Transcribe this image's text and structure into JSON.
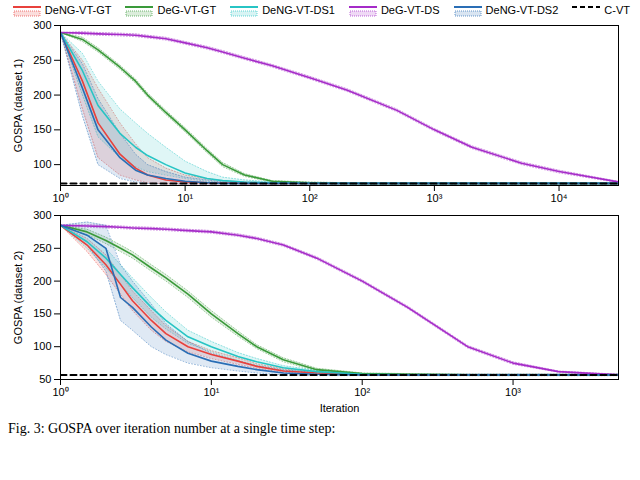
{
  "chart_data": [
    {
      "type": "line",
      "log": "x",
      "legend": "top-right",
      "ylabel": "GOSPA (dataset 1)",
      "xlim": [
        1,
        30000
      ],
      "xticks": [
        {
          "value": 1,
          "label": "10⁰"
        },
        {
          "value": 10,
          "label": "10¹"
        },
        {
          "value": 100,
          "label": "10²"
        },
        {
          "value": 1000,
          "label": "10³"
        },
        {
          "value": 10000,
          "label": "10⁴"
        }
      ],
      "ylim": [
        70,
        300
      ],
      "yticks": [
        100,
        150,
        200,
        250,
        300
      ],
      "x": [
        1,
        1.5,
        2,
        3,
        4,
        5,
        7,
        10,
        15,
        20,
        30,
        50,
        100,
        200,
        500,
        1000,
        2000,
        5000,
        10000,
        30000
      ],
      "series": [
        {
          "name": "DeNG-VT-GT",
          "color": "#e8413c",
          "line_style": "solid",
          "values": [
            290,
            220,
            160,
            115,
            95,
            85,
            78,
            75,
            74,
            73.5,
            73,
            73,
            73,
            73,
            73,
            73,
            73,
            73,
            73,
            73
          ],
          "lower": [
            290,
            180,
            110,
            85,
            78,
            74,
            72,
            72,
            72,
            72,
            72,
            72,
            72,
            72,
            72,
            72,
            72,
            72,
            72,
            72
          ],
          "upper": [
            290,
            250,
            210,
            160,
            130,
            110,
            95,
            85,
            80,
            77,
            75,
            74,
            74,
            74,
            74,
            74,
            74,
            74,
            74,
            74
          ]
        },
        {
          "name": "DeG-VT-GT",
          "color": "#3a9a3a",
          "line_style": "solid",
          "values": [
            290,
            280,
            265,
            240,
            220,
            200,
            175,
            150,
            120,
            100,
            85,
            76,
            74,
            73,
            73,
            73,
            73,
            73,
            73,
            73
          ],
          "lower": [
            290,
            277,
            262,
            237,
            217,
            197,
            172,
            147,
            117,
            97,
            83,
            75,
            73,
            72,
            72,
            72,
            72,
            72,
            72,
            72
          ],
          "upper": [
            290,
            283,
            268,
            243,
            223,
            203,
            178,
            153,
            123,
            103,
            87,
            77,
            75,
            74,
            74,
            74,
            74,
            74,
            74,
            74
          ]
        },
        {
          "name": "DeNG-VT-DS1",
          "color": "#27c4c4",
          "line_style": "solid",
          "values": [
            290,
            235,
            185,
            145,
            125,
            113,
            100,
            88,
            80,
            77,
            75,
            74,
            73,
            73,
            73,
            73,
            73,
            73,
            73,
            73
          ],
          "lower": [
            290,
            200,
            140,
            110,
            97,
            90,
            85,
            80,
            76,
            74,
            73,
            72,
            72,
            72,
            72,
            72,
            72,
            72,
            72,
            72
          ],
          "upper": [
            290,
            260,
            220,
            180,
            160,
            145,
            125,
            105,
            90,
            82,
            78,
            75,
            74,
            74,
            74,
            74,
            74,
            74,
            74,
            74
          ]
        },
        {
          "name": "DeG-VT-DS",
          "color": "#a52bc8",
          "line_style": "solid",
          "values": [
            290,
            289,
            288,
            287,
            286,
            284,
            281,
            275,
            268,
            262,
            253,
            242,
            225,
            207,
            178,
            150,
            125,
            102,
            90,
            75
          ],
          "lower": [
            290,
            287,
            286,
            285,
            284,
            282,
            279,
            273,
            266,
            260,
            251,
            240,
            223,
            205,
            176,
            148,
            123,
            100,
            88,
            74
          ],
          "upper": [
            290,
            291,
            290,
            289,
            288,
            286,
            283,
            277,
            270,
            264,
            255,
            244,
            227,
            209,
            180,
            152,
            127,
            104,
            92,
            76
          ]
        },
        {
          "name": "DeNG-VT-DS2",
          "color": "#2a6eb5",
          "line_style": "solid",
          "values": [
            290,
            210,
            150,
            110,
            92,
            85,
            80,
            76,
            74,
            73,
            73,
            73,
            73,
            73,
            73,
            73,
            73,
            73,
            73,
            73
          ],
          "lower": [
            290,
            170,
            100,
            80,
            75,
            73,
            72,
            72,
            72,
            72,
            72,
            72,
            72,
            72,
            72,
            72,
            72,
            72,
            72,
            72
          ],
          "upper": [
            290,
            245,
            195,
            145,
            115,
            100,
            90,
            82,
            78,
            75,
            74,
            74,
            74,
            74,
            74,
            74,
            74,
            74,
            74,
            74
          ]
        },
        {
          "name": "C-VT",
          "color": "#000000",
          "line_style": "dashed",
          "values": [
            73,
            73,
            73,
            73,
            73,
            73,
            73,
            73,
            73,
            73,
            73,
            73,
            73,
            73,
            73,
            73,
            73,
            73,
            73,
            73
          ]
        }
      ]
    },
    {
      "type": "line",
      "log": "x",
      "ylabel": "GOSPA (dataset 2)",
      "xlabel": "Iteration",
      "xlim": [
        1,
        5000
      ],
      "xticks": [
        {
          "value": 1,
          "label": "10⁰"
        },
        {
          "value": 10,
          "label": "10¹"
        },
        {
          "value": 100,
          "label": "10²"
        },
        {
          "value": 1000,
          "label": "10³"
        }
      ],
      "ylim": [
        50,
        300
      ],
      "yticks": [
        50,
        100,
        150,
        200,
        250,
        300
      ],
      "x": [
        1,
        1.5,
        2,
        2.5,
        3,
        4,
        5,
        7,
        10,
        15,
        20,
        30,
        50,
        100,
        200,
        500,
        1000,
        2000,
        5000
      ],
      "series": [
        {
          "name": "DeNG-VT-GT",
          "color": "#e8413c",
          "line_style": "solid",
          "values": [
            285,
            255,
            225,
            195,
            170,
            140,
            120,
            100,
            88,
            78,
            70,
            63,
            60,
            58,
            57,
            57,
            57,
            57,
            57
          ],
          "lower": [
            285,
            245,
            210,
            180,
            155,
            125,
            108,
            92,
            82,
            73,
            67,
            61,
            59,
            57,
            56,
            56,
            56,
            56,
            56
          ],
          "upper": [
            285,
            265,
            240,
            210,
            185,
            155,
            132,
            108,
            94,
            83,
            74,
            66,
            62,
            59,
            58,
            58,
            58,
            58,
            58
          ]
        },
        {
          "name": "DeG-VT-GT",
          "color": "#3a9a3a",
          "line_style": "solid",
          "values": [
            285,
            275,
            262,
            250,
            240,
            220,
            205,
            180,
            150,
            120,
            100,
            80,
            65,
            59,
            58,
            57,
            57,
            57,
            57
          ],
          "lower": [
            285,
            271,
            257,
            245,
            235,
            215,
            200,
            175,
            145,
            116,
            97,
            77,
            63,
            58,
            57,
            56,
            56,
            56,
            56
          ],
          "upper": [
            285,
            279,
            267,
            255,
            245,
            225,
            210,
            185,
            155,
            124,
            103,
            83,
            67,
            60,
            59,
            58,
            58,
            58,
            58
          ]
        },
        {
          "name": "DeNG-VT-DS1",
          "color": "#27c4c4",
          "line_style": "solid",
          "values": [
            285,
            260,
            235,
            210,
            190,
            160,
            140,
            115,
            100,
            85,
            77,
            68,
            62,
            58,
            57,
            57,
            57,
            57,
            57
          ],
          "lower": [
            285,
            250,
            220,
            195,
            175,
            145,
            127,
            105,
            92,
            79,
            72,
            65,
            60,
            57,
            56,
            56,
            56,
            56,
            56
          ],
          "upper": [
            285,
            270,
            250,
            225,
            205,
            175,
            153,
            125,
            108,
            91,
            82,
            71,
            64,
            59,
            58,
            58,
            58,
            58,
            58
          ]
        },
        {
          "name": "DeG-VT-DS",
          "color": "#a52bc8",
          "line_style": "solid",
          "values": [
            285,
            284,
            283,
            282,
            281,
            280,
            279,
            277,
            275,
            270,
            265,
            255,
            235,
            200,
            160,
            100,
            75,
            62,
            57
          ],
          "lower": [
            285,
            282,
            281,
            280,
            279,
            278,
            277,
            275,
            273,
            268,
            263,
            253,
            233,
            198,
            158,
            98,
            73,
            61,
            56
          ],
          "upper": [
            285,
            286,
            285,
            284,
            283,
            282,
            281,
            279,
            277,
            272,
            267,
            257,
            237,
            202,
            162,
            102,
            77,
            63,
            58
          ]
        },
        {
          "name": "DeNG-VT-DS2",
          "color": "#2a6eb5",
          "line_style": "solid",
          "values": [
            285,
            270,
            250,
            175,
            160,
            130,
            110,
            90,
            78,
            70,
            65,
            60,
            58,
            57,
            57,
            57,
            57,
            57,
            57
          ],
          "lower": [
            285,
            255,
            215,
            140,
            125,
            100,
            88,
            75,
            68,
            63,
            60,
            57,
            56,
            56,
            56,
            56,
            56,
            56,
            56
          ],
          "upper": [
            285,
            290,
            285,
            225,
            200,
            165,
            135,
            108,
            90,
            78,
            71,
            64,
            61,
            58,
            58,
            58,
            58,
            58,
            58
          ]
        },
        {
          "name": "C-VT",
          "color": "#000000",
          "line_style": "dashed",
          "values": [
            57,
            57,
            57,
            57,
            57,
            57,
            57,
            57,
            57,
            57,
            57,
            57,
            57,
            57,
            57,
            57,
            57,
            57,
            57
          ]
        }
      ]
    }
  ],
  "caption": "Fig. 3: GOSPA over iteration number at a single time step:"
}
